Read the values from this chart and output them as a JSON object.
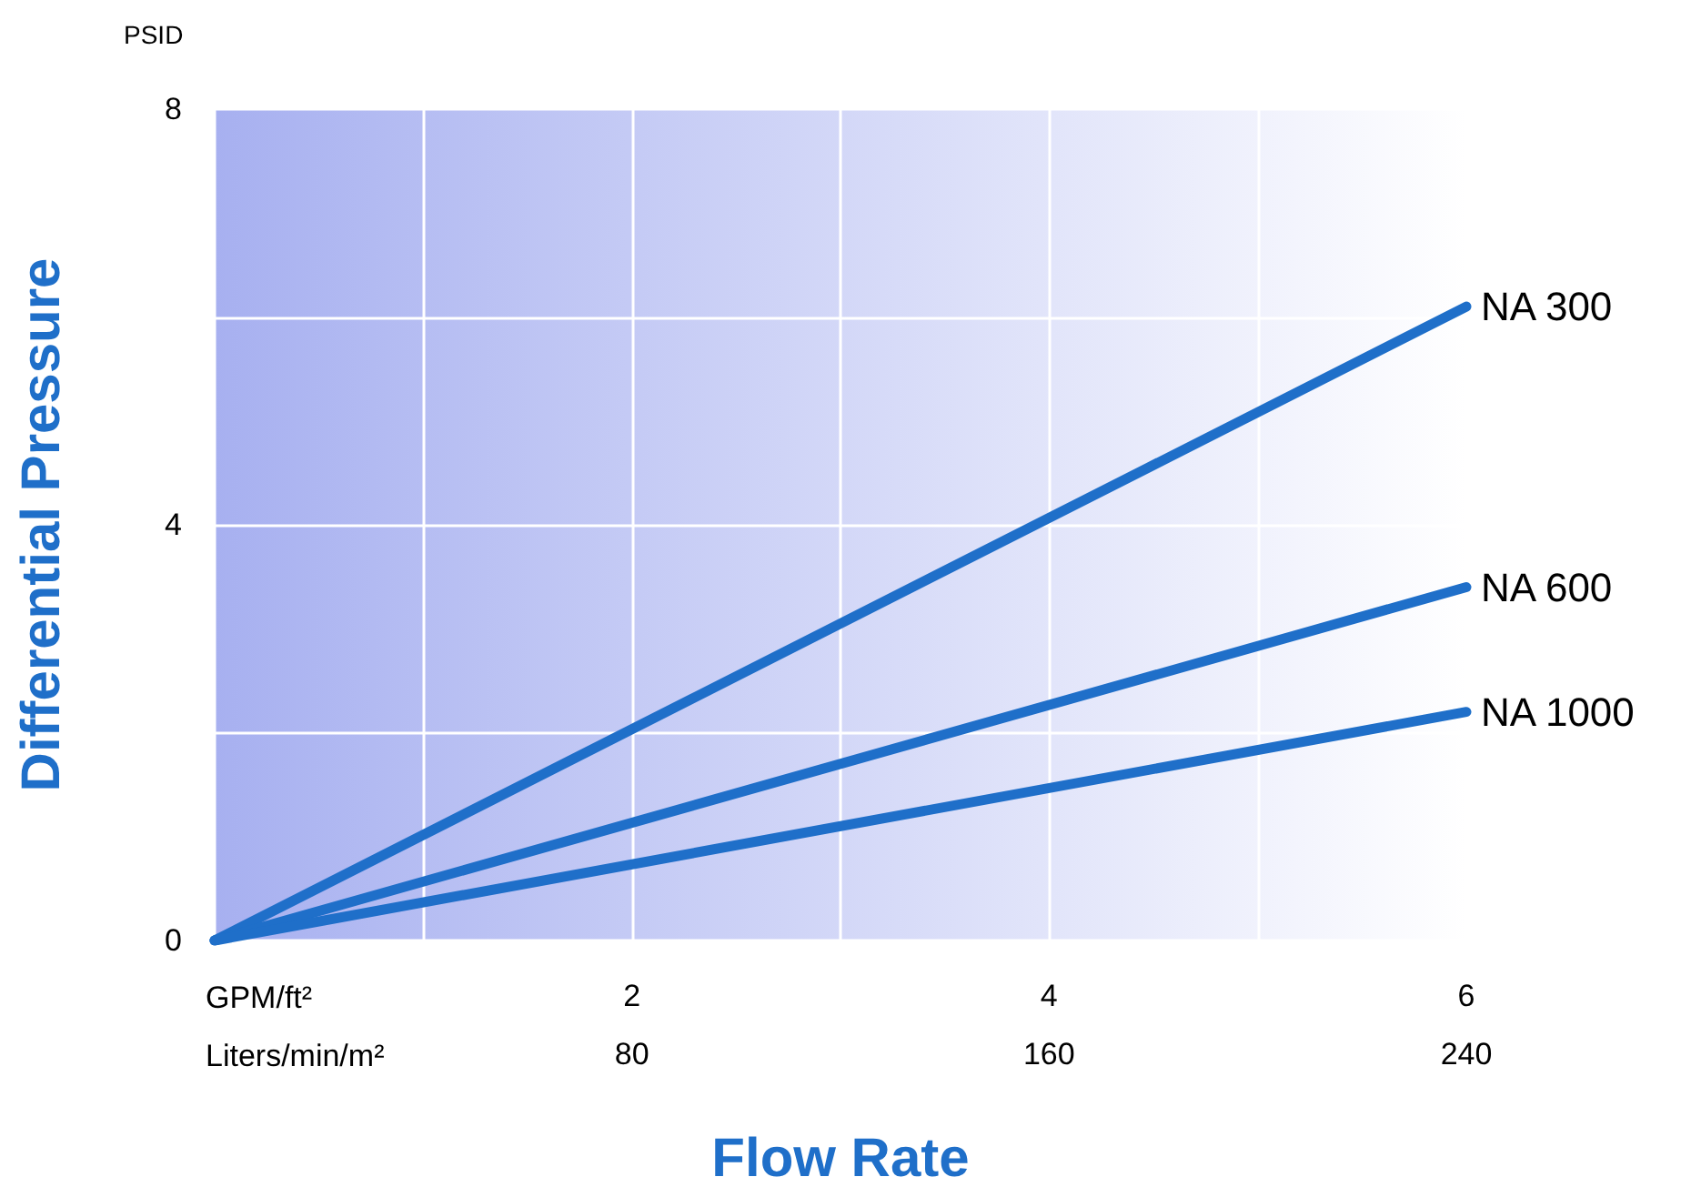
{
  "chart_data": {
    "type": "line",
    "xlabel": "Flow Rate",
    "ylabel": "Differential Pressure",
    "annotations": [
      "PSID",
      "GPM/ft²",
      "Liters/min/m²"
    ],
    "x": [
      0,
      6
    ],
    "xlim": [
      0,
      6
    ],
    "xticks": [
      2,
      4,
      6
    ],
    "x2lim": [
      0,
      240
    ],
    "x2ticks": [
      80,
      160,
      240
    ],
    "ylim": [
      0,
      8
    ],
    "yticks": [
      0,
      4,
      8
    ],
    "grid": true,
    "legend": false,
    "marker": "none",
    "line_style": "solid",
    "series": [
      {
        "name": "NA 300",
        "color": "#1f6fc9",
        "values": [
          0,
          6.1
        ]
      },
      {
        "name": "NA 600",
        "color": "#1f6fc9",
        "values": [
          0,
          3.4
        ]
      },
      {
        "name": "NA 1000",
        "color": "#1f6fc9",
        "values": [
          0,
          2.2
        ]
      }
    ]
  }
}
